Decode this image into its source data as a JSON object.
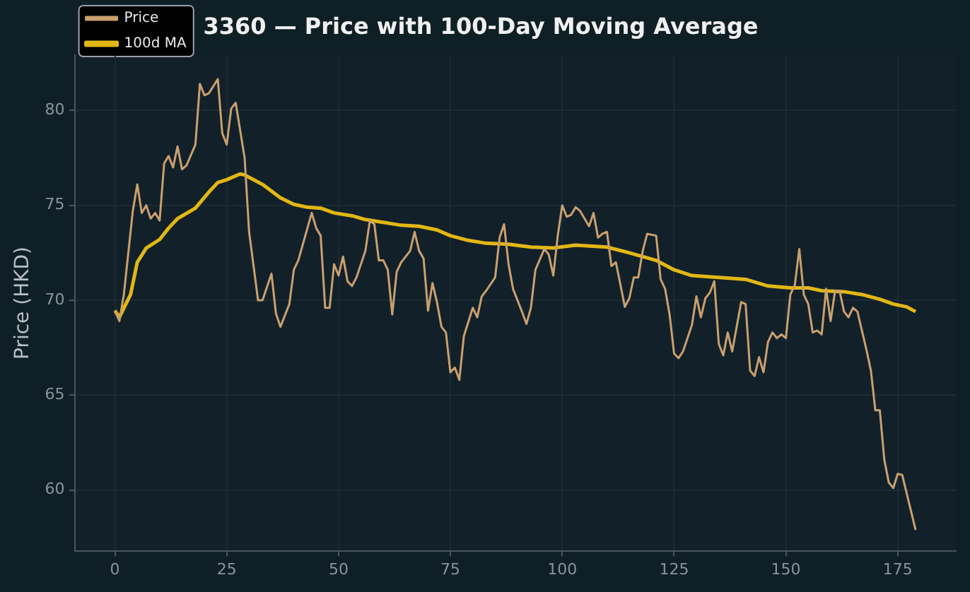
{
  "chart_data": {
    "type": "line",
    "title": "3360 — Price with 100-Day Moving Average",
    "ylabel": "Price (HKD)",
    "xlim": [
      -9,
      188
    ],
    "xticks": [
      0,
      25,
      50,
      75,
      100,
      125,
      150,
      175
    ],
    "ylim": [
      56.8,
      82.9
    ],
    "yticks": [
      60,
      65,
      70,
      75,
      80
    ],
    "grid": true,
    "legend": "top left",
    "series": [
      {
        "name": "Price",
        "color": "#c9a06e",
        "x": [
          0,
          1,
          2,
          4,
          5,
          6,
          7,
          8,
          9,
          10,
          11,
          12,
          13,
          14,
          15,
          16,
          18,
          19,
          20,
          21,
          23,
          24,
          25,
          26,
          27,
          29,
          30,
          32,
          33,
          35,
          36,
          37,
          39,
          40,
          41,
          44,
          45,
          46,
          47,
          48,
          49,
          50,
          51,
          52,
          53,
          54,
          56,
          57,
          58,
          59,
          60,
          61,
          62,
          63,
          64,
          66,
          67,
          68,
          69,
          70,
          71,
          72,
          73,
          74,
          75,
          76,
          77,
          78,
          80,
          81,
          82,
          83,
          85,
          86,
          87,
          88,
          89,
          91,
          92,
          93,
          94,
          96,
          97,
          98,
          99,
          100,
          101,
          102,
          103,
          104,
          106,
          107,
          108,
          109,
          110,
          111,
          112,
          114,
          115,
          116,
          117,
          118,
          119,
          121,
          122,
          123,
          124,
          125,
          126,
          127,
          129,
          130,
          131,
          132,
          133,
          134,
          135,
          136,
          137,
          138,
          140,
          141,
          142,
          143,
          144,
          145,
          146,
          147,
          148,
          149,
          150,
          151,
          152,
          153,
          154,
          155,
          156,
          157,
          158,
          159,
          160,
          161,
          162,
          163,
          164,
          165,
          166,
          168,
          169,
          170,
          171,
          172,
          173,
          174,
          175,
          176,
          179
        ],
        "values": [
          69.45,
          68.9,
          70.3,
          74.7,
          76.1,
          74.6,
          75.0,
          74.3,
          74.6,
          74.2,
          77.2,
          77.6,
          77.0,
          78.1,
          76.9,
          77.1,
          78.2,
          81.4,
          80.8,
          80.9,
          81.65,
          78.8,
          78.2,
          80.1,
          80.4,
          77.5,
          73.6,
          70.0,
          70.0,
          71.4,
          69.3,
          68.6,
          69.8,
          71.6,
          72.1,
          74.6,
          73.8,
          73.4,
          69.6,
          69.6,
          71.9,
          71.3,
          72.3,
          71.0,
          70.75,
          71.2,
          72.6,
          74.2,
          74.0,
          72.1,
          72.1,
          71.6,
          69.25,
          71.5,
          72.0,
          72.6,
          73.6,
          72.6,
          72.2,
          69.45,
          70.9,
          69.9,
          68.6,
          68.3,
          66.2,
          66.45,
          65.8,
          68.1,
          69.6,
          69.1,
          70.2,
          70.5,
          71.2,
          73.3,
          74.0,
          71.9,
          70.6,
          69.4,
          68.75,
          69.6,
          71.6,
          72.7,
          72.4,
          71.3,
          73.4,
          75.0,
          74.4,
          74.5,
          74.9,
          74.7,
          73.9,
          74.6,
          73.3,
          73.5,
          73.6,
          71.8,
          72.0,
          69.65,
          70.1,
          71.2,
          71.2,
          72.6,
          73.5,
          73.4,
          71.1,
          70.6,
          69.25,
          67.2,
          66.95,
          67.3,
          68.7,
          70.2,
          69.1,
          70.1,
          70.4,
          71.0,
          67.7,
          67.1,
          68.3,
          67.3,
          69.9,
          69.8,
          66.3,
          66.0,
          67.0,
          66.2,
          67.8,
          68.3,
          68.0,
          68.2,
          68.0,
          70.3,
          70.8,
          72.7,
          70.3,
          69.8,
          68.3,
          68.4,
          68.2,
          70.6,
          68.9,
          70.5,
          70.5,
          69.4,
          69.1,
          69.6,
          69.4,
          67.4,
          66.3,
          64.2,
          64.2,
          61.6,
          60.4,
          60.1,
          60.85,
          60.8,
          57.9
        ]
      },
      {
        "name": "100d MA",
        "color": "#e2b714",
        "x": [
          0,
          1,
          3.5,
          5,
          7,
          10,
          12,
          14,
          18,
          21,
          23,
          25,
          28,
          29,
          33,
          37,
          40,
          43,
          46,
          49,
          53,
          56,
          60,
          64,
          68,
          72,
          75,
          79,
          83,
          88,
          93,
          98,
          103,
          110,
          115,
          121,
          125,
          129,
          135,
          141,
          146,
          151,
          155,
          158,
          163,
          167,
          171,
          174,
          177,
          179
        ],
        "values": [
          69.45,
          69.1,
          70.3,
          72.0,
          72.75,
          73.2,
          73.8,
          74.3,
          74.85,
          75.7,
          76.2,
          76.35,
          76.65,
          76.6,
          76.1,
          75.4,
          75.05,
          74.9,
          74.85,
          74.6,
          74.45,
          74.25,
          74.1,
          73.95,
          73.9,
          73.7,
          73.4,
          73.15,
          73.0,
          72.95,
          72.8,
          72.75,
          72.9,
          72.8,
          72.5,
          72.1,
          71.6,
          71.3,
          71.2,
          71.1,
          70.75,
          70.65,
          70.65,
          70.5,
          70.45,
          70.3,
          70.05,
          69.8,
          69.65,
          69.4
        ]
      }
    ]
  }
}
